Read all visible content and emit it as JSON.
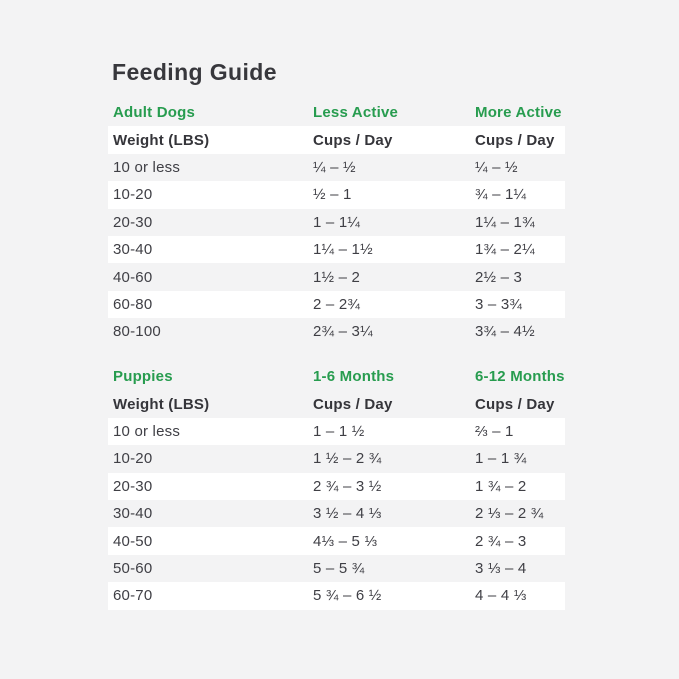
{
  "page": {
    "title": "Feeding Guide",
    "colors": {
      "background": "#f3f3f4",
      "row_stripe": "#ffffff",
      "accent_green": "#279c4f",
      "text_dark": "#37373c"
    }
  },
  "tables": {
    "adult": {
      "header": {
        "col1": "Adult Dogs",
        "col2": "Less Active",
        "col3": "More Active"
      },
      "subheader": {
        "col1": "Weight (LBS)",
        "col2": "Cups / Day",
        "col3": "Cups / Day"
      },
      "rows": [
        {
          "weight": "10 or less",
          "less_active": "¼ – ½",
          "more_active": "¼ – ½"
        },
        {
          "weight": "10-20",
          "less_active": "½ – 1",
          "more_active": "¾ – 1¼"
        },
        {
          "weight": "20-30",
          "less_active": "1 – 1¼",
          "more_active": "1¼ – 1¾"
        },
        {
          "weight": "30-40",
          "less_active": "1¼ – 1½",
          "more_active": "1¾ – 2¼"
        },
        {
          "weight": "40-60",
          "less_active": "1½ – 2",
          "more_active": "2½ – 3"
        },
        {
          "weight": "60-80",
          "less_active": "2 – 2¾",
          "more_active": "3 – 3¾"
        },
        {
          "weight": "80-100",
          "less_active": "2¾ – 3¼",
          "more_active": "3¾ – 4½"
        }
      ]
    },
    "puppies": {
      "header": {
        "col1": "Puppies",
        "col2": "1-6 Months",
        "col3": "6-12 Months"
      },
      "subheader": {
        "col1": "Weight (LBS)",
        "col2": "Cups / Day",
        "col3": "Cups / Day"
      },
      "rows": [
        {
          "weight": "10 or less",
          "months_1_6": "1 – 1 ½",
          "months_6_12": "⅔ – 1"
        },
        {
          "weight": "10-20",
          "months_1_6": "1 ½ – 2 ¾",
          "months_6_12": "1 – 1 ¾"
        },
        {
          "weight": "20-30",
          "months_1_6": "2 ¾ – 3 ½",
          "months_6_12": "1 ¾ – 2"
        },
        {
          "weight": "30-40",
          "months_1_6": "3 ½ – 4 ⅓",
          "months_6_12": "2 ⅓ – 2 ¾"
        },
        {
          "weight": "40-50",
          "months_1_6": "4⅓ – 5 ⅓",
          "months_6_12": "2 ¾ – 3"
        },
        {
          "weight": "50-60",
          "months_1_6": "5 – 5 ¾",
          "months_6_12": "3 ⅓ – 4"
        },
        {
          "weight": "60-70",
          "months_1_6": "5 ¾ – 6 ½",
          "months_6_12": "4 – 4 ⅓"
        }
      ]
    }
  }
}
